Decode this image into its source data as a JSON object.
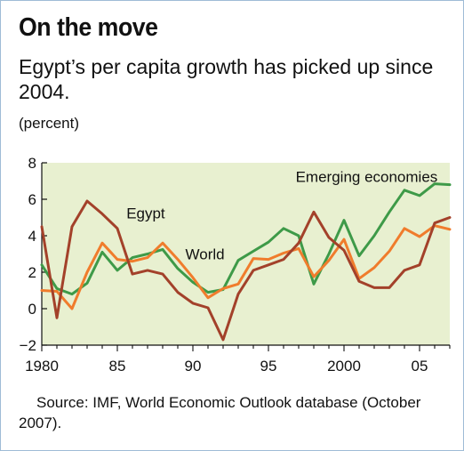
{
  "title": "On the move",
  "subtitle": "Egypt’s per capita growth has picked up since 2004.",
  "unit": "(percent)",
  "source": "Source: IMF, World Economic Outlook database (October 2007).",
  "colors": {
    "plot_background": "#e8f0d0",
    "egypt": "#a3412a",
    "world": "#f07c2c",
    "emerging": "#3e9a48",
    "axis": "#111111",
    "frame": "#9fbcd6"
  },
  "chart_data": {
    "type": "line",
    "title": "On the move",
    "subtitle": "Egypt’s per capita growth has picked up since 2004.",
    "ylabel": "(percent)",
    "xlabel": "",
    "xlim": [
      1980,
      2007
    ],
    "ylim": [
      -2,
      8
    ],
    "x_ticks": [
      1980,
      1985,
      1990,
      1995,
      2000,
      2005
    ],
    "x_tick_labels": [
      "1980",
      "85",
      "90",
      "95",
      "2000",
      "05"
    ],
    "y_ticks": [
      -2,
      0,
      2,
      4,
      6,
      8
    ],
    "y_tick_labels": [
      "−2",
      "0",
      "2",
      "4",
      "6",
      "8"
    ],
    "grid": false,
    "legend": "none (inline series labels)",
    "x": [
      1980,
      1981,
      1982,
      1983,
      1984,
      1985,
      1986,
      1987,
      1988,
      1989,
      1990,
      1991,
      1992,
      1993,
      1994,
      1995,
      1996,
      1997,
      1998,
      1999,
      2000,
      2001,
      2002,
      2003,
      2004,
      2005,
      2006,
      2007
    ],
    "series": [
      {
        "name": "Egypt",
        "key": "egypt",
        "values": [
          4.5,
          -0.5,
          4.5,
          5.9,
          5.2,
          4.4,
          1.9,
          2.1,
          1.9,
          0.9,
          0.3,
          0.05,
          -1.7,
          0.8,
          2.1,
          2.4,
          2.7,
          3.6,
          5.3,
          3.9,
          3.2,
          1.5,
          1.15,
          1.15,
          2.1,
          2.4,
          4.7,
          5.0
        ]
      },
      {
        "name": "World",
        "key": "world",
        "values": [
          1.0,
          0.95,
          0.0,
          2.0,
          3.6,
          2.7,
          2.6,
          2.8,
          3.6,
          2.7,
          1.7,
          0.6,
          1.1,
          1.35,
          2.75,
          2.7,
          3.05,
          3.3,
          1.75,
          2.65,
          3.8,
          1.65,
          2.25,
          3.15,
          4.4,
          3.95,
          4.55,
          4.35
        ]
      },
      {
        "name": "Emerging economies",
        "key": "emerging",
        "values": [
          2.4,
          1.1,
          0.8,
          1.4,
          3.1,
          2.1,
          2.8,
          3.0,
          3.25,
          2.2,
          1.45,
          0.9,
          1.05,
          2.65,
          3.15,
          3.65,
          4.4,
          4.0,
          1.35,
          3.0,
          4.85,
          2.9,
          4.0,
          5.3,
          6.5,
          6.2,
          6.85,
          6.8
        ]
      }
    ],
    "annotations": [
      {
        "text": "Egypt",
        "series": "egypt",
        "x": 1985.6,
        "y": 4.95
      },
      {
        "text": "World",
        "series": "world",
        "x": 1989.5,
        "y": 2.7
      },
      {
        "text": "Emerging economies",
        "series": "emerging",
        "x": 1996.8,
        "y": 6.95
      }
    ]
  }
}
